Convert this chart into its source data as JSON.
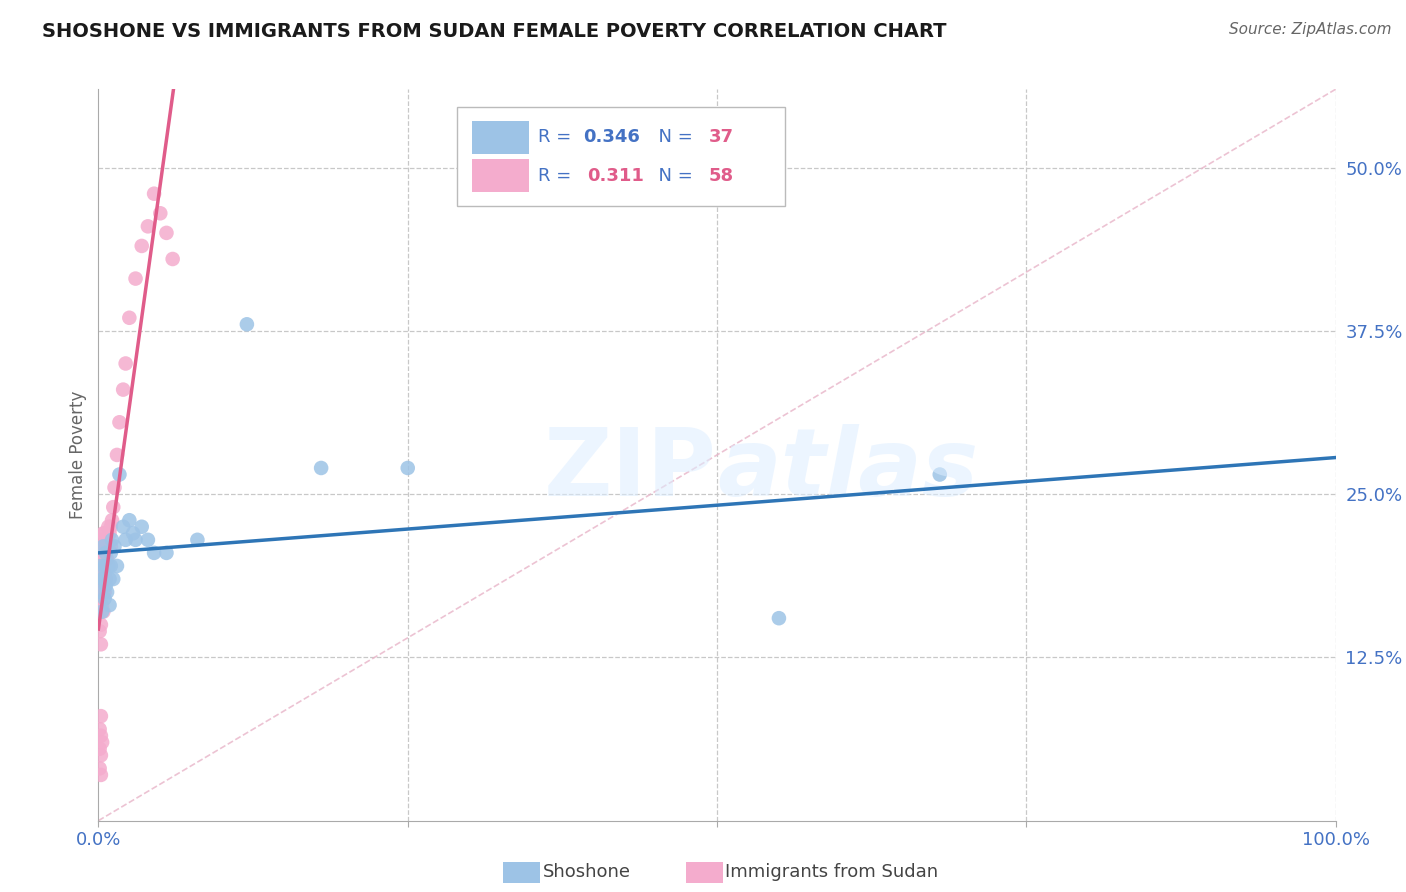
{
  "title": "SHOSHONE VS IMMIGRANTS FROM SUDAN FEMALE POVERTY CORRELATION CHART",
  "source": "Source: ZipAtlas.com",
  "ylabel": "Female Poverty",
  "xlim": [
    0,
    1.0
  ],
  "ylim": [
    0.0,
    0.56
  ],
  "xtick_vals": [
    0.0,
    0.25,
    0.5,
    0.75,
    1.0
  ],
  "xtick_labels": [
    "0.0%",
    "",
    "",
    "",
    "100.0%"
  ],
  "ytick_vals": [
    0.125,
    0.25,
    0.375,
    0.5
  ],
  "ytick_labels": [
    "12.5%",
    "25.0%",
    "37.5%",
    "50.0%"
  ],
  "shoshone_color": "#9dc3e6",
  "sudan_color": "#f4accd",
  "line_blue": "#2e75b6",
  "line_pink": "#e05c8a",
  "line_dash": "#e8b4c8",
  "background_color": "#ffffff",
  "grid_color": "#c8c8c8",
  "watermark": "ZIPatlas",
  "shoshone_x": [
    0.002,
    0.002,
    0.003,
    0.003,
    0.004,
    0.004,
    0.005,
    0.005,
    0.006,
    0.006,
    0.007,
    0.007,
    0.008,
    0.009,
    0.009,
    0.01,
    0.01,
    0.011,
    0.012,
    0.013,
    0.015,
    0.017,
    0.02,
    0.022,
    0.025,
    0.028,
    0.03,
    0.035,
    0.04,
    0.045,
    0.055,
    0.08,
    0.12,
    0.18,
    0.25,
    0.55,
    0.68
  ],
  "shoshone_y": [
    0.195,
    0.175,
    0.185,
    0.16,
    0.21,
    0.185,
    0.195,
    0.17,
    0.205,
    0.18,
    0.195,
    0.175,
    0.195,
    0.185,
    0.165,
    0.205,
    0.195,
    0.215,
    0.185,
    0.21,
    0.195,
    0.265,
    0.225,
    0.215,
    0.23,
    0.22,
    0.215,
    0.225,
    0.215,
    0.205,
    0.205,
    0.215,
    0.38,
    0.27,
    0.27,
    0.155,
    0.265
  ],
  "sudan_x": [
    0.001,
    0.001,
    0.001,
    0.001,
    0.001,
    0.001,
    0.002,
    0.002,
    0.002,
    0.002,
    0.002,
    0.002,
    0.003,
    0.003,
    0.003,
    0.003,
    0.004,
    0.004,
    0.004,
    0.004,
    0.004,
    0.005,
    0.005,
    0.005,
    0.005,
    0.006,
    0.006,
    0.006,
    0.007,
    0.007,
    0.008,
    0.008,
    0.009,
    0.01,
    0.01,
    0.011,
    0.012,
    0.013,
    0.015,
    0.017,
    0.02,
    0.022,
    0.025,
    0.03,
    0.035,
    0.04,
    0.045,
    0.05,
    0.055,
    0.06,
    0.001,
    0.001,
    0.001,
    0.002,
    0.002,
    0.002,
    0.002,
    0.003
  ],
  "sudan_y": [
    0.215,
    0.2,
    0.185,
    0.175,
    0.16,
    0.145,
    0.205,
    0.195,
    0.18,
    0.165,
    0.15,
    0.135,
    0.21,
    0.195,
    0.18,
    0.165,
    0.22,
    0.205,
    0.19,
    0.175,
    0.16,
    0.22,
    0.205,
    0.19,
    0.175,
    0.215,
    0.2,
    0.185,
    0.215,
    0.2,
    0.225,
    0.21,
    0.22,
    0.225,
    0.21,
    0.23,
    0.24,
    0.255,
    0.28,
    0.305,
    0.33,
    0.35,
    0.385,
    0.415,
    0.44,
    0.455,
    0.48,
    0.465,
    0.45,
    0.43,
    0.07,
    0.055,
    0.04,
    0.08,
    0.065,
    0.05,
    0.035,
    0.06
  ]
}
